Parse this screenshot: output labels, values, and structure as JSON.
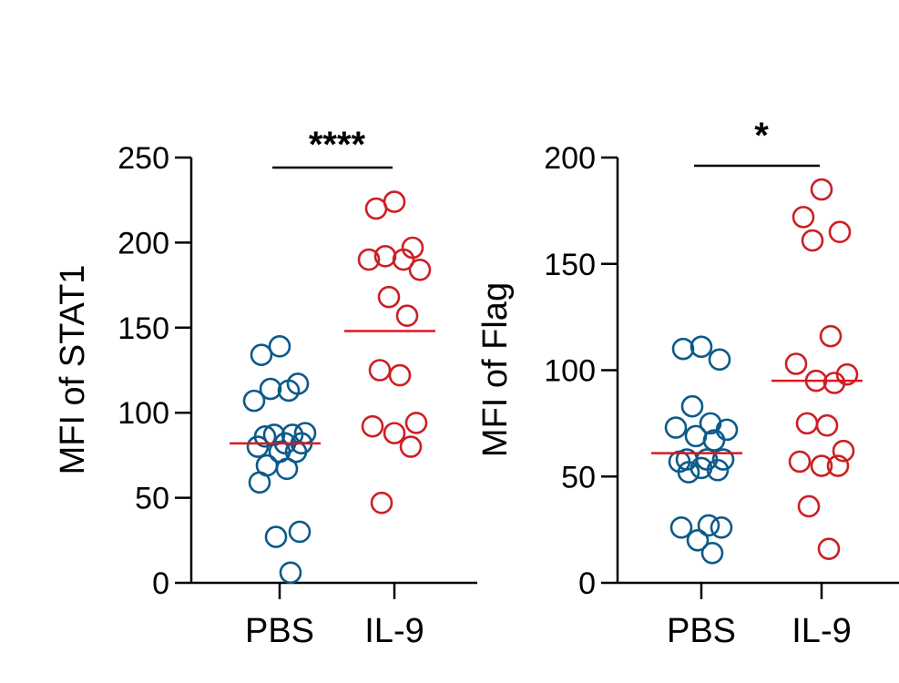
{
  "chart_data": [
    {
      "type": "scatter",
      "title": "",
      "xlabel": "",
      "ylabel": "MFI  of STAT1",
      "ylim": [
        0,
        250
      ],
      "yticks": [
        0,
        50,
        100,
        150,
        200,
        250
      ],
      "categories": [
        "PBS",
        "IL-9"
      ],
      "significance": "****",
      "grid": false,
      "series": [
        {
          "category": "PBS",
          "color": "#0b5a8a",
          "mean": 82,
          "values": [
            139,
            134,
            117,
            114,
            113,
            107,
            88,
            87,
            87,
            86,
            82,
            82,
            80,
            77,
            77,
            69,
            67,
            59,
            30,
            27,
            6
          ]
        },
        {
          "category": "IL-9",
          "color": "#cc1f24",
          "mean": 148,
          "values": [
            224,
            220,
            197,
            192,
            190,
            190,
            184,
            168,
            157,
            125,
            122,
            94,
            92,
            88,
            80,
            47
          ]
        }
      ]
    },
    {
      "type": "scatter",
      "title": "",
      "xlabel": "",
      "ylabel": "MFI  of Flag",
      "ylim": [
        0,
        200
      ],
      "yticks": [
        0,
        50,
        100,
        150,
        200
      ],
      "categories": [
        "PBS",
        "IL-9"
      ],
      "significance": "*",
      "grid": false,
      "series": [
        {
          "category": "PBS",
          "color": "#0b5a8a",
          "mean": 61,
          "values": [
            111,
            110,
            105,
            83,
            75,
            73,
            72,
            69,
            67,
            58,
            58,
            58,
            57,
            54,
            53,
            52,
            27,
            26,
            26,
            20,
            14
          ]
        },
        {
          "category": "IL-9",
          "color": "#cc1f24",
          "mean": 95,
          "values": [
            185,
            172,
            165,
            161,
            116,
            103,
            98,
            95,
            94,
            75,
            74,
            62,
            57,
            55,
            55,
            36,
            16
          ]
        }
      ]
    }
  ]
}
